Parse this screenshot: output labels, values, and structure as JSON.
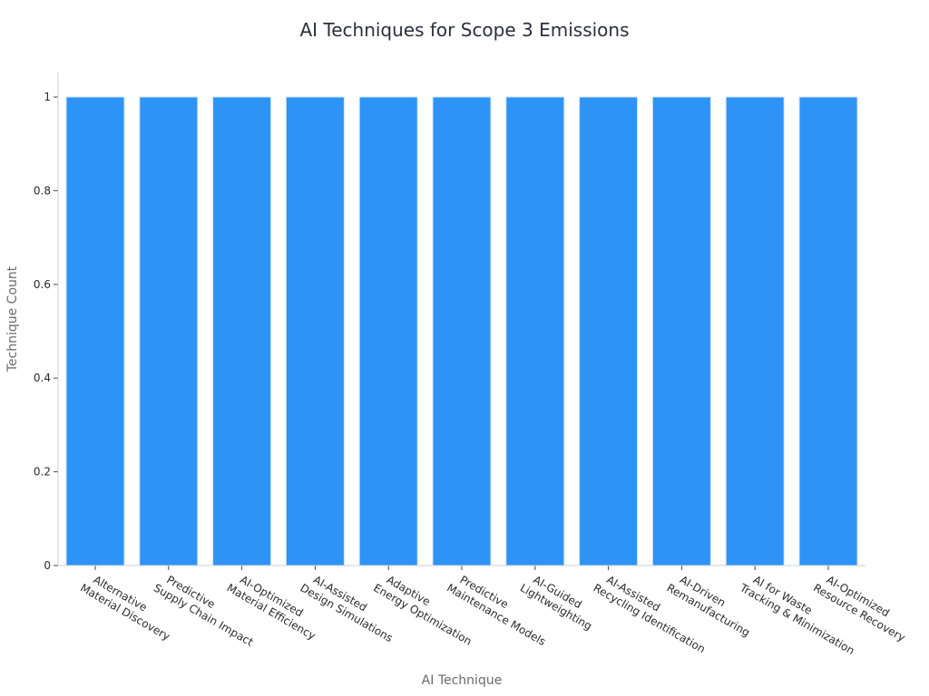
{
  "chart_data": {
    "type": "bar",
    "title": "AI Techniques for Scope 3 Emissions",
    "xlabel": "AI Technique",
    "ylabel": "Technique Count",
    "categories": [
      [
        "Alternative",
        "Material Discovery"
      ],
      [
        "Predictive",
        "Supply Chain Impact"
      ],
      [
        "AI-Optimized",
        "Material Efficiency"
      ],
      [
        "AI-Assisted",
        "Design Simulations"
      ],
      [
        "Adaptive",
        "Energy Optimization"
      ],
      [
        "Predictive",
        "Maintenance Models"
      ],
      [
        "AI-Guided",
        "Lightweighting"
      ],
      [
        "AI-Assisted",
        "Recycling Identification"
      ],
      [
        "AI-Driven",
        "Remanufacturing"
      ],
      [
        "AI for Waste",
        "Tracking & Minimization"
      ],
      [
        "AI-Optimized",
        "Resource Recovery"
      ]
    ],
    "values": [
      1,
      1,
      1,
      1,
      1,
      1,
      1,
      1,
      1,
      1,
      1
    ],
    "ylim": [
      0,
      1.0
    ],
    "yticks": [
      0,
      0.2,
      0.4,
      0.6,
      0.8,
      1
    ],
    "ytick_labels": [
      "0",
      "0.2",
      "0.4",
      "0.6",
      "0.8",
      "1"
    ],
    "grid": false,
    "bar_color": "#2e93f6"
  }
}
